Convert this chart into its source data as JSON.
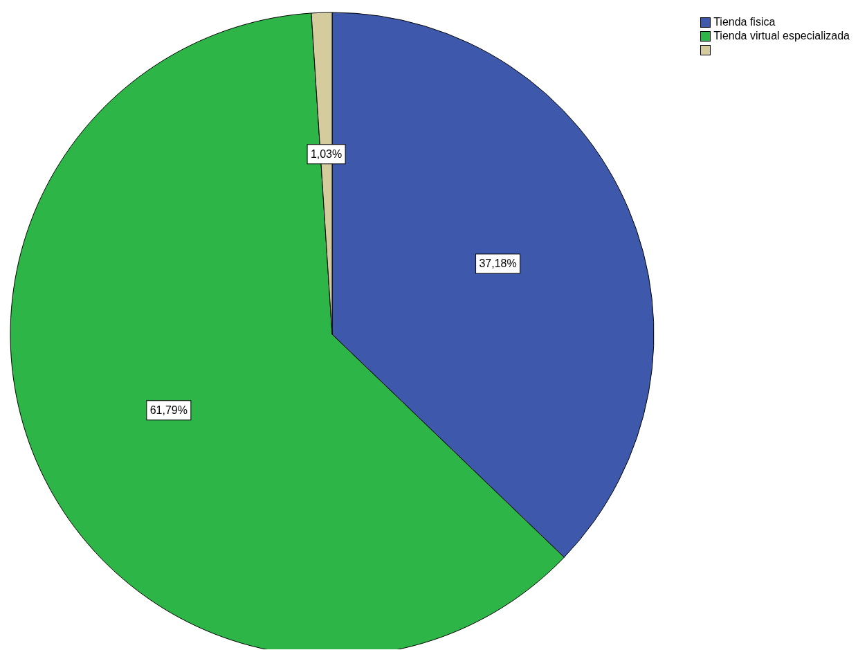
{
  "chart_data": {
    "type": "pie",
    "categories": [
      "Tienda fisica",
      "Tienda virtual especializada",
      null
    ],
    "values": [
      37.18,
      61.79,
      1.03
    ],
    "colors": [
      "#3e58ac",
      "#2eb548",
      "#d4cc9c"
    ],
    "value_labels": [
      "37,18%",
      "61,79%",
      "1,03%"
    ],
    "legend": "top right"
  }
}
